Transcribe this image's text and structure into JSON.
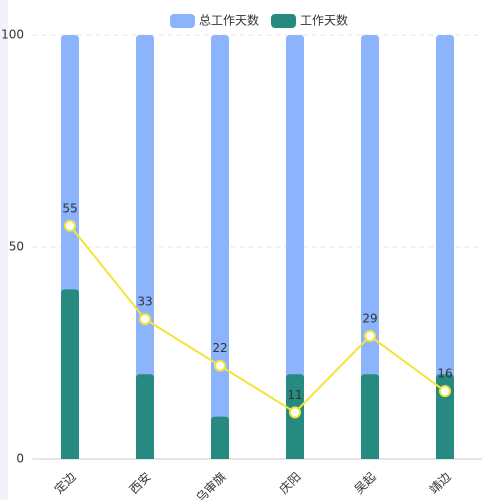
{
  "chart_data": {
    "type": "bar",
    "categories": [
      "定边",
      "西安",
      "乌审旗",
      "庆阳",
      "吴起",
      "靖边"
    ],
    "series": [
      {
        "name": "总工作天数",
        "color": "#8cb4fc",
        "values": [
          100,
          100,
          100,
          100,
          100,
          100
        ]
      },
      {
        "name": "工作天数",
        "color": "#268a80",
        "values": [
          40,
          20,
          10,
          20,
          20,
          20
        ]
      },
      {
        "type": "line",
        "color": "#f5e33b",
        "values": [
          55,
          33,
          22,
          11,
          29,
          16
        ]
      }
    ],
    "ylim": [
      0,
      100
    ],
    "yticks": [
      0,
      50,
      100
    ],
    "grid": true
  }
}
